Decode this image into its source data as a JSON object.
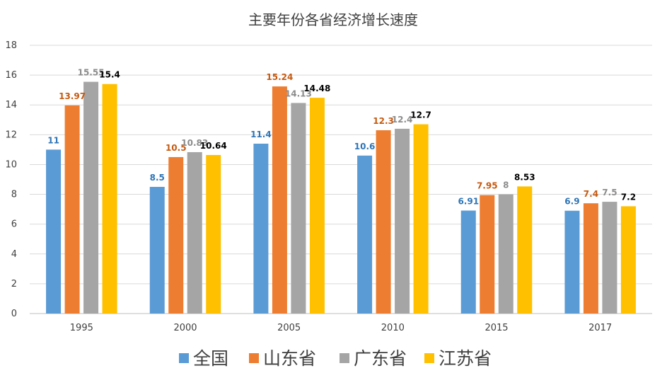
{
  "chart_data": {
    "type": "bar",
    "title": "主要年份各省经济增长速度",
    "categories": [
      "1995",
      "2000",
      "2005",
      "2010",
      "2015",
      "2017"
    ],
    "ylim": [
      0,
      18
    ],
    "yticks": [
      0,
      2,
      4,
      6,
      8,
      10,
      12,
      14,
      16,
      18
    ],
    "grid": true,
    "legend_position": "bottom",
    "series": [
      {
        "name": "全国",
        "color": "#5B9BD5",
        "label_color": "#2E75B6",
        "values": [
          11,
          8.5,
          11.4,
          10.6,
          6.91,
          6.9
        ],
        "labels": [
          "11",
          "8.5",
          "11.4",
          "10.6",
          "6.91",
          "6.9"
        ]
      },
      {
        "name": "山东省",
        "color": "#ED7D31",
        "label_color": "#C55A11",
        "values": [
          13.97,
          10.5,
          15.24,
          12.3,
          7.95,
          7.4
        ],
        "labels": [
          "13.97",
          "10.5",
          "15.24",
          "12.3",
          "7.95",
          "7.4"
        ]
      },
      {
        "name": "广东省",
        "color": "#A5A5A5",
        "label_color": "#8C8C8C",
        "values": [
          15.55,
          10.83,
          14.13,
          12.4,
          8,
          7.5
        ],
        "labels": [
          "15.55",
          "10.83",
          "14.13",
          "12.4",
          "8",
          "7.5"
        ]
      },
      {
        "name": "江苏省",
        "color": "#FFC000",
        "label_color": "#000000",
        "values": [
          15.4,
          10.64,
          14.48,
          12.7,
          8.53,
          7.2
        ],
        "labels": [
          "15.4",
          "10.64",
          "14.48",
          "12.7",
          "8.53",
          "7.2"
        ]
      }
    ]
  }
}
